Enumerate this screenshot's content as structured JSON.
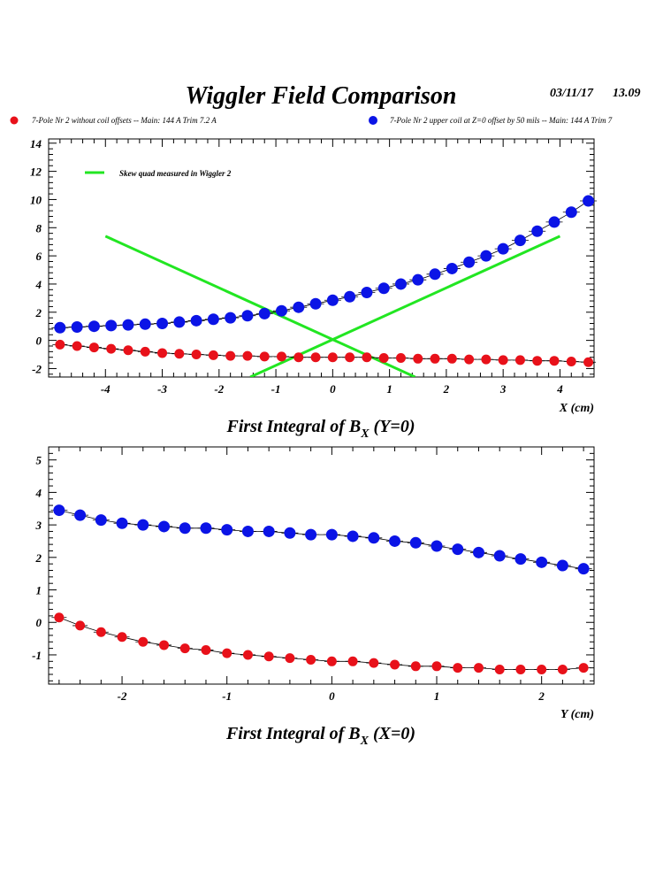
{
  "page": {
    "title": "Wiggler Field Comparison",
    "date": "03/11/17",
    "time": "13.09",
    "legend": {
      "red_label": "7-Pole Nr 2 without coil offsets  -- Main: 144 A  Trim 7.2 A",
      "blue_label": "7-Pole Nr 2 upper coil at Z=0 offset by 50 mils  -- Main: 144 A  Trim 7",
      "red_color": "#e8111a",
      "blue_color": "#0b14e6",
      "line_color": "#22e622"
    }
  },
  "chart_data": [
    {
      "type": "scatter",
      "title_main": "First Integral of B",
      "title_sub": "X",
      "title_suffix": " (Y=0)",
      "xlabel": "X (cm)",
      "ylabel": "",
      "xlim": [
        -5,
        4.6
      ],
      "ylim": [
        -2.6,
        14.3
      ],
      "xticks": [
        -4,
        -3,
        -2,
        -1,
        0,
        1,
        2,
        3,
        4
      ],
      "yticks": [
        -2,
        0,
        2,
        4,
        6,
        8,
        10,
        12,
        14
      ],
      "series": [
        {
          "name": "7-Pole Nr 2 without coil offsets",
          "color": "#e8111a",
          "marker_size": 5.5,
          "x": [
            -4.8,
            -4.5,
            -4.2,
            -3.9,
            -3.6,
            -3.3,
            -3.0,
            -2.7,
            -2.4,
            -2.1,
            -1.8,
            -1.5,
            -1.2,
            -0.9,
            -0.6,
            -0.3,
            0.0,
            0.3,
            0.6,
            0.9,
            1.2,
            1.5,
            1.8,
            2.1,
            2.4,
            2.7,
            3.0,
            3.3,
            3.6,
            3.9,
            4.2,
            4.5
          ],
          "y": [
            -0.3,
            -0.4,
            -0.5,
            -0.6,
            -0.7,
            -0.8,
            -0.9,
            -0.95,
            -1.0,
            -1.05,
            -1.1,
            -1.1,
            -1.15,
            -1.15,
            -1.2,
            -1.2,
            -1.2,
            -1.2,
            -1.2,
            -1.25,
            -1.25,
            -1.3,
            -1.3,
            -1.3,
            -1.35,
            -1.35,
            -1.4,
            -1.4,
            -1.45,
            -1.45,
            -1.5,
            -1.55
          ]
        },
        {
          "name": "7-Pole Nr 2 upper coil at Z=0 offset by 50 mils",
          "color": "#0b14e6",
          "marker_size": 6.5,
          "x": [
            -4.8,
            -4.5,
            -4.2,
            -3.9,
            -3.6,
            -3.3,
            -3.0,
            -2.7,
            -2.4,
            -2.1,
            -1.8,
            -1.5,
            -1.2,
            -0.9,
            -0.6,
            -0.3,
            0.0,
            0.3,
            0.6,
            0.9,
            1.2,
            1.5,
            1.8,
            2.1,
            2.4,
            2.7,
            3.0,
            3.3,
            3.6,
            3.9,
            4.2,
            4.5
          ],
          "y": [
            0.9,
            0.95,
            1.0,
            1.05,
            1.1,
            1.15,
            1.2,
            1.3,
            1.4,
            1.5,
            1.6,
            1.75,
            1.9,
            2.1,
            2.35,
            2.6,
            2.85,
            3.1,
            3.4,
            3.7,
            4.0,
            4.3,
            4.7,
            5.1,
            5.55,
            6.0,
            6.5,
            7.1,
            7.75,
            8.4,
            9.1,
            9.9
          ]
        }
      ],
      "lines": [
        {
          "name": "Skew quad measured in Wiggler 2 (rising)",
          "color": "#22e622",
          "x": [
            -1.45,
            4.0
          ],
          "y": [
            -2.6,
            7.4
          ]
        },
        {
          "name": "Skew quad measured in Wiggler 2 (falling)",
          "color": "#22e622",
          "x": [
            -4.0,
            1.45
          ],
          "y": [
            7.4,
            -2.6
          ]
        }
      ],
      "legend": {
        "label": "Skew quad measured in Wiggler 2",
        "placement": "top-left"
      }
    },
    {
      "type": "scatter",
      "title_main": "First Integral of B",
      "title_sub": "X",
      "title_suffix": " (X=0)",
      "xlabel": "Y (cm)",
      "ylabel": "",
      "xlim": [
        -2.7,
        2.5
      ],
      "ylim": [
        -1.9,
        5.4
      ],
      "xticks": [
        -2,
        -1,
        0,
        1,
        2
      ],
      "yticks": [
        -1,
        0,
        1,
        2,
        3,
        4,
        5
      ],
      "series": [
        {
          "name": "7-Pole Nr 2 without coil offsets",
          "color": "#e8111a",
          "marker_size": 5.5,
          "x": [
            -2.6,
            -2.4,
            -2.2,
            -2.0,
            -1.8,
            -1.6,
            -1.4,
            -1.2,
            -1.0,
            -0.8,
            -0.6,
            -0.4,
            -0.2,
            0.0,
            0.2,
            0.4,
            0.6,
            0.8,
            1.0,
            1.2,
            1.4,
            1.6,
            1.8,
            2.0,
            2.2,
            2.4
          ],
          "y": [
            0.15,
            -0.1,
            -0.3,
            -0.45,
            -0.6,
            -0.7,
            -0.8,
            -0.85,
            -0.95,
            -1.0,
            -1.05,
            -1.1,
            -1.15,
            -1.2,
            -1.2,
            -1.25,
            -1.3,
            -1.35,
            -1.35,
            -1.4,
            -1.4,
            -1.45,
            -1.45,
            -1.45,
            -1.45,
            -1.4
          ]
        },
        {
          "name": "7-Pole Nr 2 upper coil at Z=0 offset by 50 mils",
          "color": "#0b14e6",
          "marker_size": 6.5,
          "x": [
            -2.6,
            -2.4,
            -2.2,
            -2.0,
            -1.8,
            -1.6,
            -1.4,
            -1.2,
            -1.0,
            -0.8,
            -0.6,
            -0.4,
            -0.2,
            0.0,
            0.2,
            0.4,
            0.6,
            0.8,
            1.0,
            1.2,
            1.4,
            1.6,
            1.8,
            2.0,
            2.2,
            2.4
          ],
          "y": [
            3.45,
            3.3,
            3.15,
            3.05,
            3.0,
            2.95,
            2.9,
            2.9,
            2.85,
            2.8,
            2.8,
            2.75,
            2.7,
            2.7,
            2.65,
            2.6,
            2.5,
            2.45,
            2.35,
            2.25,
            2.15,
            2.05,
            1.95,
            1.85,
            1.75,
            1.65
          ]
        }
      ],
      "lines": [],
      "legend": null
    }
  ]
}
